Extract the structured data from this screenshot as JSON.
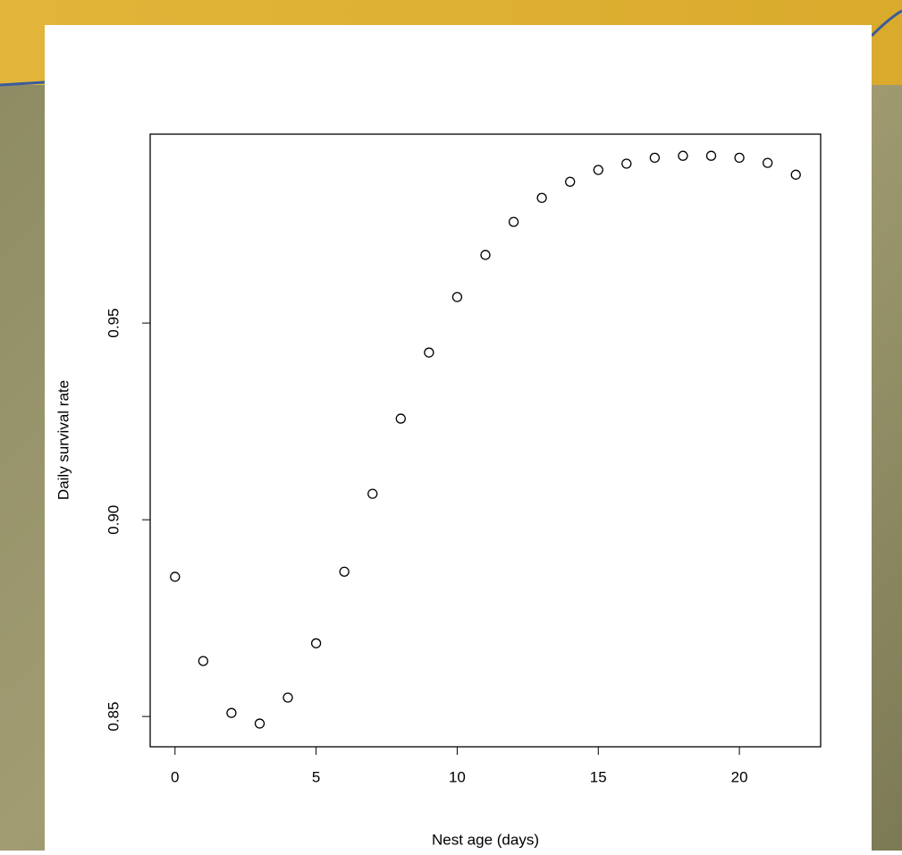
{
  "chart_data": {
    "type": "scatter",
    "x_label": "Nest age (days)",
    "y_label": "Daily survival rate",
    "x": [
      0,
      1,
      2,
      3,
      4,
      5,
      6,
      7,
      8,
      9,
      10,
      11,
      12,
      13,
      14,
      15,
      16,
      17,
      18,
      19,
      20,
      21,
      22
    ],
    "values": [
      0.8855,
      0.8641,
      0.8509,
      0.8482,
      0.8548,
      0.8686,
      0.8868,
      0.9066,
      0.9257,
      0.9425,
      0.9566,
      0.9673,
      0.9757,
      0.9818,
      0.9859,
      0.9889,
      0.9905,
      0.992,
      0.9925,
      0.9925,
      0.992,
      0.9907,
      0.9877
    ],
    "color": "#000000",
    "xlim": [
      -0.88,
      22.88
    ],
    "ylim": [
      0.8423,
      0.998
    ],
    "xticks": [
      0,
      5,
      10,
      15,
      20
    ],
    "yticks": [
      0.85,
      {
        "value": 0.9,
        "label": "0.90"
      },
      0.95
    ]
  }
}
